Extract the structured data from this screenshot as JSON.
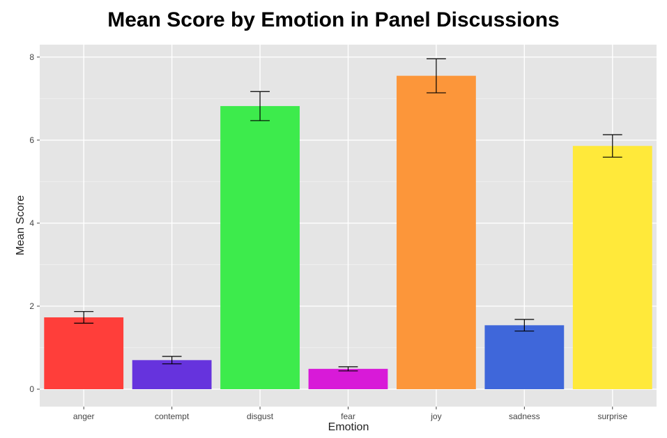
{
  "chart_data": {
    "type": "bar",
    "title": "Mean Score by Emotion in Panel Discussions",
    "xlabel": "Emotion",
    "ylabel": "Mean Score",
    "categories": [
      "anger",
      "contempt",
      "disgust",
      "fear",
      "joy",
      "sadness",
      "surprise"
    ],
    "values": [
      1.73,
      0.7,
      6.82,
      0.49,
      7.55,
      1.54,
      5.86
    ],
    "error_low": [
      1.59,
      0.61,
      6.47,
      0.44,
      7.14,
      1.4,
      5.59
    ],
    "error_high": [
      1.87,
      0.79,
      7.17,
      0.54,
      7.96,
      1.68,
      6.13
    ],
    "colors": [
      "#ff3e3a",
      "#6633dd",
      "#3deb4c",
      "#d81ad8",
      "#fc963a",
      "#3f67da",
      "#ffe93a"
    ],
    "ylim": [
      -0.42,
      8.3
    ],
    "yticks": [
      0,
      2,
      4,
      6,
      8
    ],
    "grid": true,
    "panel_background": "#e5e5e5"
  }
}
